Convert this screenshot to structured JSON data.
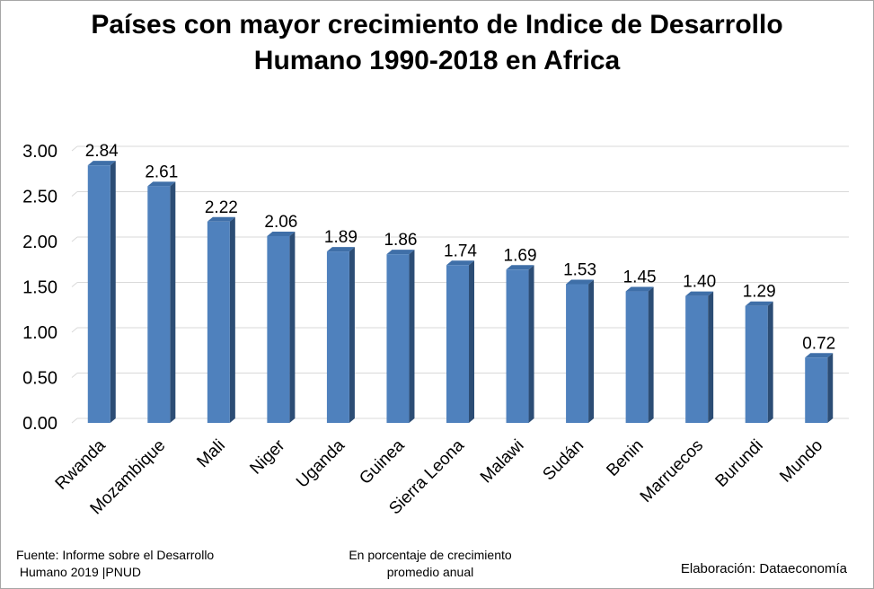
{
  "chart_data": {
    "type": "bar",
    "title_line1": "Países con mayor crecimiento de Indice de Desarrollo",
    "title_line2": "Humano 1990-2018 en Africa",
    "categories": [
      "Rwanda",
      "Mozambique",
      "Mali",
      "Niger",
      "Uganda",
      "Guinea",
      "Sierra Leona",
      "Malawi",
      "Sudán",
      "Benin",
      "Marruecos",
      "Burundi",
      "Mundo"
    ],
    "values": [
      2.84,
      2.61,
      2.22,
      2.06,
      1.89,
      1.86,
      1.74,
      1.69,
      1.53,
      1.45,
      1.4,
      1.29,
      0.72
    ],
    "value_labels": [
      "2.84",
      "2.61",
      "2.22",
      "2.06",
      "1.89",
      "1.86",
      "1.74",
      "1.69",
      "1.53",
      "1.45",
      "1.40",
      "1.29",
      "0.72"
    ],
    "yticks": [
      "0.00",
      "0.50",
      "1.00",
      "1.50",
      "2.00",
      "2.50",
      "3.00"
    ],
    "ylim": [
      0,
      3.0
    ],
    "grid": true,
    "legend": "none",
    "bar_color": "#4f81bd",
    "bar_side_color": "#2c4d75",
    "bar_top_color": "#3f6fa8"
  },
  "footer": {
    "source_line1": "Fuente: Informe sobre el Desarrollo",
    "source_line2": " Humano 2019 |PNUD",
    "unit_line1": "En porcentaje de crecimiento",
    "unit_line2": "promedio anual",
    "credit": "Elaboración: Dataeconomía"
  }
}
